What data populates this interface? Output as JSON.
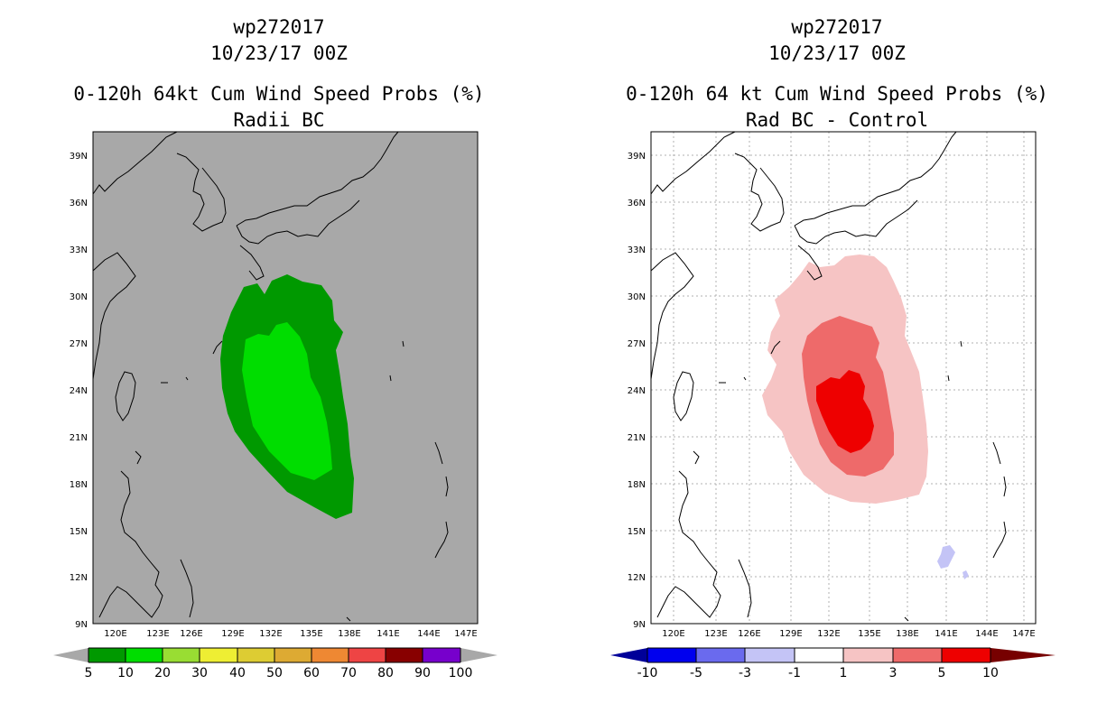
{
  "panels": [
    {
      "storm": "wp272017",
      "date": "10/23/17 00Z",
      "title": "0-120h 64kt Cum Wind Speed Probs (%)",
      "subtitle": "Radii BC",
      "background": "#a8a8a8",
      "colorbar": {
        "colors": [
          "#009900",
          "#00dd00",
          "#99dd33",
          "#eeee33",
          "#ddcc33",
          "#ddaa33",
          "#ee8833",
          "#ee4444",
          "#880000",
          "#7700cc"
        ],
        "end_low": "#a8a8a8",
        "end_high": "#a8a8a8",
        "labels": [
          "5",
          "10",
          "20",
          "30",
          "40",
          "50",
          "60",
          "70",
          "80",
          "90",
          "100"
        ]
      }
    },
    {
      "storm": "wp272017",
      "date": "10/23/17 00Z",
      "title": "0-120h 64 kt Cum Wind Speed Probs (%)",
      "subtitle": "Rad BC - Control",
      "background": "#ffffff",
      "colorbar": {
        "colors": [
          "#0000ee",
          "#6a6aee",
          "#c4c4f6",
          "#ffffff",
          "#f6c4c4",
          "#ee6a6a",
          "#ee0000"
        ],
        "end_low": "#000099",
        "end_high": "#770000",
        "labels": [
          "-10",
          "-5",
          "-3",
          "-1",
          "1",
          "3",
          "5",
          "10"
        ]
      }
    }
  ],
  "map": {
    "lon_labels": [
      "120E",
      "123E",
      "126E",
      "129E",
      "132E",
      "135E",
      "138E",
      "141E",
      "144E",
      "147E"
    ],
    "lat_labels": [
      "39N",
      "36N",
      "33N",
      "30N",
      "27N",
      "24N",
      "21N",
      "18N",
      "15N",
      "12N",
      "9N"
    ]
  }
}
